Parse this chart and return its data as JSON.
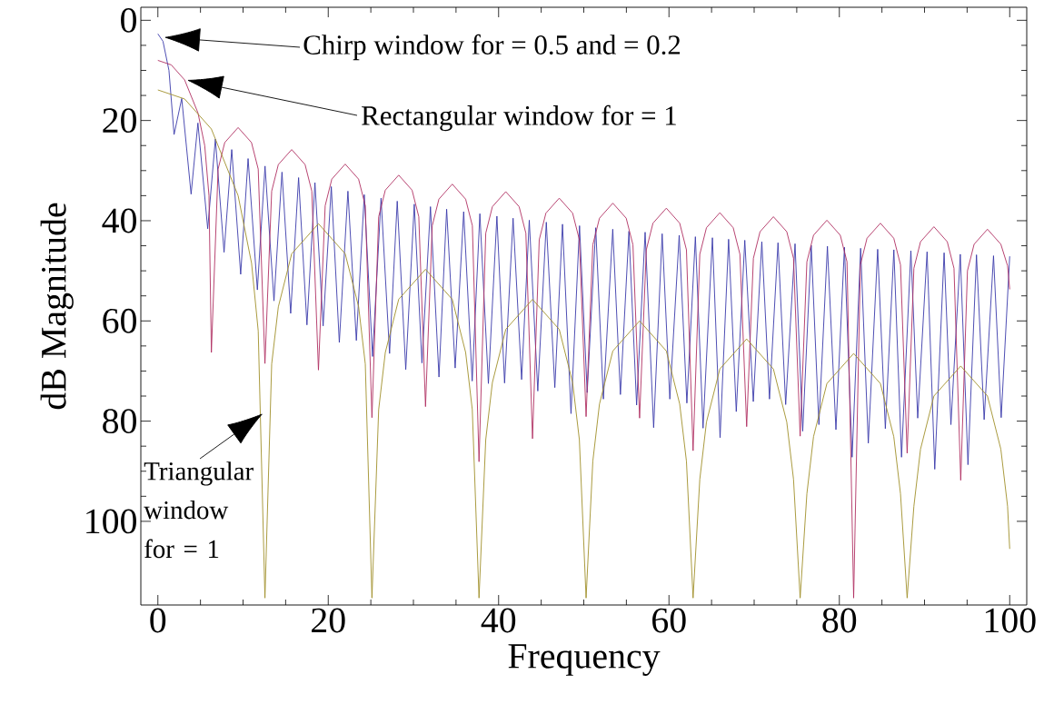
{
  "chart_data": {
    "type": "line",
    "xlabel": "Frequency",
    "ylabel": "dB Magnitude",
    "xlim": [
      -2.0,
      102.0
    ],
    "ylim": [
      116.7,
      -2.6
    ],
    "xticks": [
      0,
      20,
      40,
      60,
      80,
      100
    ],
    "yticks": [
      0,
      20,
      40,
      60,
      80,
      100
    ],
    "series": [
      {
        "color": "#3a3aaa",
        "x": [
          0,
          0.6,
          1.3,
          1.9,
          2.8,
          3.9,
          4.7,
          5.85,
          6.75,
          7.77,
          8.67,
          9.72,
          10.59,
          11.68,
          12.58,
          13.63,
          14.57,
          15.59,
          16.52,
          17.5,
          18.44,
          19.4,
          20.36,
          21.3,
          22.31,
          23.3,
          24.23,
          25.2,
          26.2,
          27.2,
          28.1,
          29.1,
          30.1,
          31.0,
          32.0,
          33.0,
          33.9,
          34.9,
          35.9,
          36.9,
          37.8,
          38.8,
          39.8,
          40.7,
          41.7,
          42.7,
          43.6,
          44.6,
          45.6,
          46.6,
          47.5,
          48.5,
          49.5,
          50.4,
          51.4,
          52.3,
          53.4,
          54.3,
          55.3,
          56.2,
          57.2,
          58.2,
          59.2,
          60.1,
          61.2,
          62.1,
          63.1,
          64.0,
          65.1,
          66.0,
          67.0,
          67.9,
          68.9,
          69.9,
          70.9,
          71.8,
          72.8,
          73.7,
          74.8,
          75.7,
          76.7,
          77.6,
          78.6,
          79.6,
          80.6,
          81.5,
          82.5,
          83.4,
          84.5,
          85.4,
          86.4,
          87.3,
          88.4,
          89.2,
          90.3,
          91.2,
          92.3,
          93.1,
          94.2,
          95.1,
          96.1,
          97.0,
          98.1,
          99.0,
          100
        ],
        "values": [
          2.7,
          4.2,
          10.0,
          22.8,
          15.6,
          34.7,
          20.5,
          41.6,
          23.7,
          46.3,
          25.8,
          50.7,
          27.6,
          53.8,
          29.1,
          56.0,
          30.3,
          58.5,
          31.4,
          60.8,
          32.4,
          61.0,
          33.2,
          64.3,
          34.1,
          63.9,
          34.8,
          67.1,
          35.5,
          66.5,
          36.1,
          69.7,
          36.7,
          68.4,
          37.2,
          71.2,
          37.7,
          69.4,
          38.2,
          72.0,
          38.6,
          72.5,
          39.1,
          72.4,
          39.5,
          71.7,
          39.9,
          74.0,
          40.3,
          73.3,
          40.7,
          78.5,
          41.0,
          74.3,
          41.4,
          75.6,
          41.7,
          74.7,
          42.1,
          76.8,
          42.3,
          81.3,
          42.6,
          75.6,
          42.9,
          76.4,
          43.2,
          81.4,
          43.4,
          83.3,
          43.7,
          78.1,
          43.9,
          76.1,
          44.2,
          75.6,
          44.4,
          76.7,
          44.6,
          82.0,
          44.9,
          80.7,
          45.1,
          81.7,
          45.3,
          87.2,
          45.5,
          84.4,
          45.7,
          81.5,
          45.8,
          87.2,
          46.0,
          79.4,
          46.2,
          89.6,
          46.4,
          80.7,
          46.7,
          88.7,
          46.8,
          79.7,
          47.0,
          79.3,
          47.1
        ]
      },
      {
        "color": "#b03062",
        "x": [
          0,
          1.57,
          3.14,
          4.71,
          5.5,
          6.0,
          6.28,
          7.07,
          7.85,
          9.42,
          10.99,
          11.78,
          12.57,
          13.36,
          14.14,
          15.71,
          17.28,
          18.07,
          18.85,
          19.64,
          20.42,
          21.99,
          23.56,
          24.35,
          25.13,
          25.92,
          26.7,
          28.27,
          29.84,
          30.63,
          31.42,
          32.21,
          32.99,
          34.56,
          36.13,
          36.92,
          37.7,
          38.49,
          39.27,
          40.84,
          42.41,
          43.2,
          43.98,
          44.77,
          45.55,
          47.12,
          48.69,
          49.48,
          50.27,
          51.06,
          51.84,
          53.41,
          54.98,
          55.77,
          56.55,
          57.34,
          58.12,
          59.69,
          61.26,
          62.05,
          62.83,
          63.62,
          64.4,
          65.97,
          67.54,
          68.33,
          69.12,
          69.91,
          70.69,
          72.26,
          73.83,
          74.62,
          75.4,
          76.19,
          76.97,
          78.54,
          80.11,
          80.9,
          81.68,
          82.47,
          83.25,
          84.82,
          86.39,
          87.18,
          87.96,
          88.75,
          89.53,
          91.1,
          92.67,
          93.46,
          94.25,
          95.04,
          95.82,
          97.39,
          98.96,
          99.75,
          100
        ],
        "values": [
          8,
          8.9,
          11.9,
          18.5,
          25,
          35,
          66.3,
          29.7,
          24.4,
          21.4,
          24.4,
          29.7,
          68.5,
          34.1,
          28.8,
          25.8,
          28.8,
          34.1,
          69.8,
          37.0,
          31.7,
          28.7,
          31.7,
          37.0,
          79.3,
          39.2,
          33.9,
          30.9,
          33.9,
          39.2,
          77.1,
          41.0,
          35.7,
          32.7,
          35.7,
          41.0,
          88.1,
          42.5,
          37.2,
          34.2,
          37.2,
          42.5,
          83.5,
          43.8,
          38.5,
          35.5,
          38.5,
          43.8,
          79.1,
          44.8,
          39.5,
          36.5,
          39.5,
          44.8,
          79.4,
          45.8,
          40.5,
          37.5,
          40.5,
          45.8,
          85.9,
          46.7,
          41.4,
          38.4,
          41.4,
          46.7,
          81.1,
          47.5,
          42.2,
          39.2,
          42.2,
          47.5,
          83.0,
          48.2,
          42.9,
          39.9,
          42.9,
          48.2,
          115.3,
          48.8,
          43.5,
          40.5,
          43.5,
          48.8,
          86.4,
          49.5,
          44.2,
          41.2,
          44.2,
          49.5,
          91.8,
          50.0,
          44.7,
          41.7,
          44.7,
          49.0,
          53.7
        ]
      },
      {
        "color": "#a0902a",
        "x": [
          0,
          3.14,
          6.28,
          9.42,
          11.0,
          11.78,
          12.57,
          13.36,
          14.14,
          15.71,
          18.85,
          21.99,
          23.57,
          24.35,
          25.13,
          25.92,
          26.7,
          28.27,
          31.42,
          34.56,
          36.13,
          36.91,
          37.7,
          38.49,
          39.27,
          40.84,
          43.98,
          47.12,
          48.69,
          49.48,
          50.27,
          51.06,
          51.84,
          53.41,
          56.55,
          59.69,
          61.26,
          62.05,
          62.83,
          63.62,
          64.4,
          65.97,
          69.12,
          72.26,
          73.83,
          74.62,
          75.4,
          76.19,
          76.97,
          78.54,
          81.68,
          84.82,
          86.39,
          87.18,
          87.96,
          88.75,
          89.53,
          91.1,
          94.25,
          97.39,
          98.96,
          99.75,
          100
        ],
        "values": [
          13.9,
          15.7,
          21.7,
          35,
          48.5,
          62,
          115.3,
          68.6,
          57.2,
          46.6,
          40.6,
          46.6,
          57.2,
          68.6,
          115.3,
          77.7,
          66.3,
          55.7,
          49.7,
          55.7,
          66.3,
          77.7,
          115.3,
          83.7,
          72.3,
          61.7,
          55.7,
          61.7,
          72.3,
          83.7,
          115.3,
          88.0,
          76.6,
          66.0,
          60.0,
          66.0,
          76.6,
          88.0,
          115.3,
          91.6,
          80.2,
          69.6,
          63.6,
          69.6,
          80.2,
          91.6,
          115.3,
          94.5,
          83.1,
          72.5,
          66.5,
          72.5,
          83.1,
          94.5,
          115.3,
          97.0,
          85.6,
          75.0,
          69.0,
          75.0,
          85.6,
          97.0,
          105.5
        ]
      }
    ],
    "annotations": [
      "Chirp window for = 0.5 and = 0.2",
      "Rectangular window for = 1",
      {
        "text": "Triangular window for = 1",
        "x": 12.4,
        "y": 78.4
      }
    ]
  }
}
